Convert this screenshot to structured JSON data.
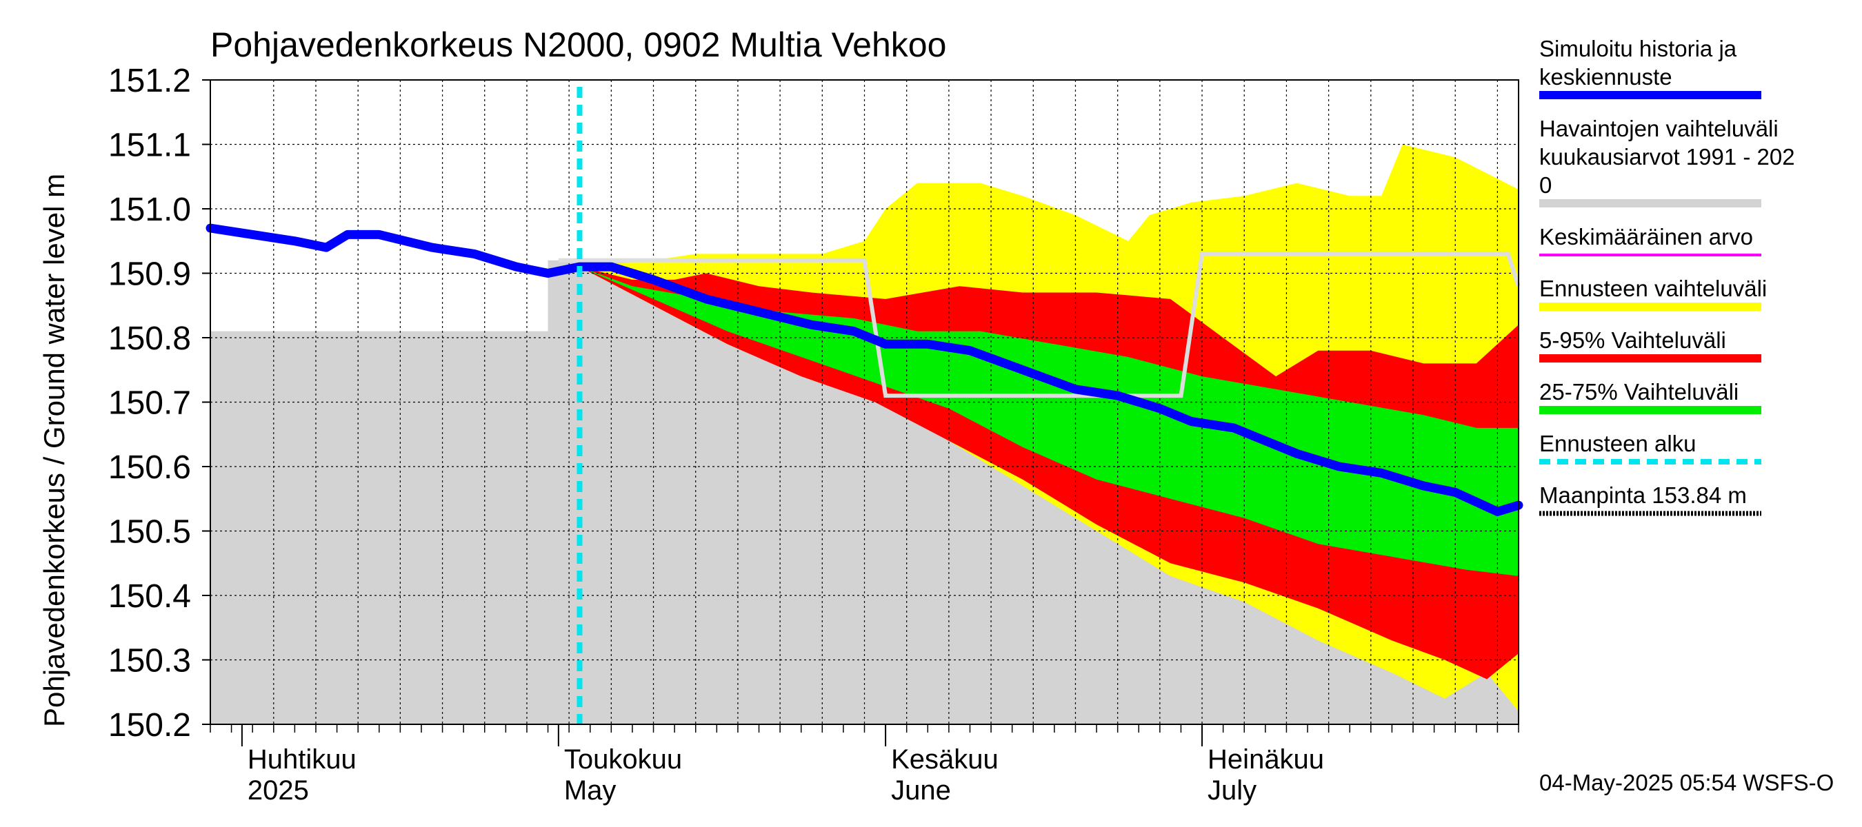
{
  "chart_data": {
    "type": "area",
    "title": "Pohjavedenkorkeus N2000, 0902 Multia Vehkoo",
    "ylabel": "Pohjavedenkorkeus / Ground water level   m",
    "ylim": [
      150.2,
      151.2
    ],
    "yticks": [
      "151.2",
      "151.1",
      "151.0",
      "150.9",
      "150.8",
      "150.7",
      "150.6",
      "150.5",
      "150.4",
      "150.3",
      "150.2"
    ],
    "xlim": [
      "2025-03-29",
      "2025-07-31"
    ],
    "grid": true,
    "month_labels": [
      {
        "date": "2025-04-01",
        "line1": "Huhtikuu",
        "line2": "2025"
      },
      {
        "date": "2025-05-01",
        "line1": "Toukokuu",
        "line2": "May"
      },
      {
        "date": "2025-06-01",
        "line1": "Kesäkuu",
        "line2": "June"
      },
      {
        "date": "2025-07-01",
        "line1": "Heinäkuu",
        "line2": "July"
      }
    ],
    "forecast_start": "2025-05-03",
    "footer": "04-May-2025 05:54 WSFS-O",
    "colors": {
      "observed_range": "#d3d3d3",
      "forecast_range": "#ffff00",
      "range_5_95": "#ff0000",
      "range_25_75": "#00ee00",
      "median": "#0000ff",
      "monthly_mean": "#dddddd",
      "forecast_start": "#00e5ee",
      "average": "#ff00ff"
    },
    "legend": [
      {
        "key": "median",
        "line1": "Simuloitu historia ja",
        "line2": "keskiennuste",
        "line3": "",
        "color": "#0000ff",
        "style": "solid"
      },
      {
        "key": "observed",
        "line1": "Havaintojen vaihteluväli",
        "line2": " kuukausiarvot 1991 - 202",
        "line3": "0",
        "color": "#d3d3d3",
        "style": "solid"
      },
      {
        "key": "average",
        "line1": "Keskimääräinen arvo",
        "line2": "",
        "line3": "",
        "color": "#ff00ff",
        "style": "thin"
      },
      {
        "key": "forecast_range",
        "line1": "Ennusteen vaihteluväli",
        "line2": "",
        "line3": "",
        "color": "#ffff00",
        "style": "solid"
      },
      {
        "key": "range_5_95",
        "line1": "5-95% Vaihteluväli",
        "line2": "",
        "line3": "",
        "color": "#ff0000",
        "style": "solid"
      },
      {
        "key": "range_25_75",
        "line1": "25-75% Vaihteluväli",
        "line2": "",
        "line3": "",
        "color": "#00ee00",
        "style": "solid"
      },
      {
        "key": "forecast_start",
        "line1": "Ennusteen alku",
        "line2": "",
        "line3": "",
        "color": "#00e5ee",
        "style": "dashed"
      },
      {
        "key": "ground",
        "line1": "Maanpinta 153.84 m",
        "line2": "",
        "line3": "",
        "color": "#000000",
        "style": "dotted"
      }
    ],
    "observed_range": {
      "upper": [
        [
          "2025-03-29",
          150.81
        ],
        [
          "2025-04-30",
          150.81
        ],
        [
          "2025-04-30",
          150.92
        ],
        [
          "2025-05-31",
          150.92
        ],
        [
          "2025-05-31",
          150.71
        ],
        [
          "2025-06-30",
          150.71
        ],
        [
          "2025-06-30",
          150.93
        ],
        [
          "2025-07-31",
          150.93
        ]
      ],
      "lower": [
        [
          "2025-03-29",
          150.2
        ],
        [
          "2025-07-31",
          150.2
        ]
      ]
    },
    "monthly_mean": [
      [
        "2025-05-01",
        150.92
      ],
      [
        "2025-05-30",
        150.92
      ],
      [
        "2025-06-01",
        150.71
      ],
      [
        "2025-06-29",
        150.71
      ],
      [
        "2025-07-01",
        150.93
      ],
      [
        "2025-07-30",
        150.93
      ],
      [
        "2025-07-31",
        150.88
      ]
    ],
    "forecast_range": {
      "upper": [
        [
          "2025-05-03",
          150.91
        ],
        [
          "2025-05-10",
          150.92
        ],
        [
          "2025-05-14",
          150.93
        ],
        [
          "2025-05-20",
          150.93
        ],
        [
          "2025-05-26",
          150.93
        ],
        [
          "2025-05-30",
          150.95
        ],
        [
          "2025-06-01",
          151.0
        ],
        [
          "2025-06-04",
          151.04
        ],
        [
          "2025-06-10",
          151.04
        ],
        [
          "2025-06-14",
          151.02
        ],
        [
          "2025-06-19",
          150.99
        ],
        [
          "2025-06-24",
          150.95
        ],
        [
          "2025-06-26",
          150.99
        ],
        [
          "2025-06-30",
          151.01
        ],
        [
          "2025-07-05",
          151.02
        ],
        [
          "2025-07-10",
          151.04
        ],
        [
          "2025-07-15",
          151.02
        ],
        [
          "2025-07-18",
          151.02
        ],
        [
          "2025-07-20",
          151.1
        ],
        [
          "2025-07-25",
          151.08
        ],
        [
          "2025-07-31",
          151.03
        ]
      ],
      "lower": [
        [
          "2025-05-03",
          150.91
        ],
        [
          "2025-05-10",
          150.85
        ],
        [
          "2025-05-17",
          150.79
        ],
        [
          "2025-05-24",
          150.75
        ],
        [
          "2025-05-31",
          150.71
        ],
        [
          "2025-06-07",
          150.64
        ],
        [
          "2025-06-14",
          150.57
        ],
        [
          "2025-06-21",
          150.5
        ],
        [
          "2025-06-28",
          150.43
        ],
        [
          "2025-07-05",
          150.39
        ],
        [
          "2025-07-12",
          150.33
        ],
        [
          "2025-07-19",
          150.28
        ],
        [
          "2025-07-24",
          150.24
        ],
        [
          "2025-07-28",
          150.28
        ],
        [
          "2025-07-31",
          150.22
        ]
      ]
    },
    "range_5_95": {
      "upper": [
        [
          "2025-05-03",
          150.91
        ],
        [
          "2025-05-08",
          150.89
        ],
        [
          "2025-05-12",
          150.89
        ],
        [
          "2025-05-15",
          150.9
        ],
        [
          "2025-05-20",
          150.88
        ],
        [
          "2025-05-25",
          150.87
        ],
        [
          "2025-06-01",
          150.86
        ],
        [
          "2025-06-08",
          150.88
        ],
        [
          "2025-06-14",
          150.87
        ],
        [
          "2025-06-21",
          150.87
        ],
        [
          "2025-06-28",
          150.86
        ],
        [
          "2025-07-03",
          150.8
        ],
        [
          "2025-07-08",
          150.74
        ],
        [
          "2025-07-12",
          150.78
        ],
        [
          "2025-07-17",
          150.78
        ],
        [
          "2025-07-22",
          150.76
        ],
        [
          "2025-07-27",
          150.76
        ],
        [
          "2025-07-31",
          150.82
        ]
      ],
      "lower": [
        [
          "2025-05-03",
          150.91
        ],
        [
          "2025-05-10",
          150.85
        ],
        [
          "2025-05-17",
          150.79
        ],
        [
          "2025-05-24",
          150.74
        ],
        [
          "2025-05-31",
          150.7
        ],
        [
          "2025-06-07",
          150.64
        ],
        [
          "2025-06-14",
          150.58
        ],
        [
          "2025-06-21",
          150.51
        ],
        [
          "2025-06-28",
          150.45
        ],
        [
          "2025-07-05",
          150.42
        ],
        [
          "2025-07-12",
          150.38
        ],
        [
          "2025-07-19",
          150.33
        ],
        [
          "2025-07-24",
          150.3
        ],
        [
          "2025-07-28",
          150.27
        ],
        [
          "2025-07-31",
          150.31
        ]
      ]
    },
    "range_25_75": {
      "upper": [
        [
          "2025-05-03",
          150.91
        ],
        [
          "2025-05-08",
          150.88
        ],
        [
          "2025-05-15",
          150.86
        ],
        [
          "2025-05-22",
          150.84
        ],
        [
          "2025-05-29",
          150.83
        ],
        [
          "2025-06-04",
          150.81
        ],
        [
          "2025-06-10",
          150.81
        ],
        [
          "2025-06-17",
          150.79
        ],
        [
          "2025-06-24",
          150.77
        ],
        [
          "2025-07-01",
          150.74
        ],
        [
          "2025-07-08",
          150.72
        ],
        [
          "2025-07-15",
          150.7
        ],
        [
          "2025-07-22",
          150.68
        ],
        [
          "2025-07-27",
          150.66
        ],
        [
          "2025-07-31",
          150.66
        ]
      ],
      "lower": [
        [
          "2025-05-03",
          150.91
        ],
        [
          "2025-05-10",
          150.86
        ],
        [
          "2025-05-17",
          150.81
        ],
        [
          "2025-05-24",
          150.77
        ],
        [
          "2025-05-31",
          150.73
        ],
        [
          "2025-06-07",
          150.69
        ],
        [
          "2025-06-14",
          150.63
        ],
        [
          "2025-06-21",
          150.58
        ],
        [
          "2025-06-28",
          150.55
        ],
        [
          "2025-07-05",
          150.52
        ],
        [
          "2025-07-12",
          150.48
        ],
        [
          "2025-07-19",
          150.46
        ],
        [
          "2025-07-26",
          150.44
        ],
        [
          "2025-07-31",
          150.43
        ]
      ]
    },
    "median": [
      [
        "2025-03-29",
        150.97
      ],
      [
        "2025-04-02",
        150.96
      ],
      [
        "2025-04-06",
        150.95
      ],
      [
        "2025-04-09",
        150.94
      ],
      [
        "2025-04-11",
        150.96
      ],
      [
        "2025-04-14",
        150.96
      ],
      [
        "2025-04-19",
        150.94
      ],
      [
        "2025-04-23",
        150.93
      ],
      [
        "2025-04-27",
        150.91
      ],
      [
        "2025-04-30",
        150.9
      ],
      [
        "2025-05-03",
        150.91
      ],
      [
        "2025-05-06",
        150.91
      ],
      [
        "2025-05-10",
        150.89
      ],
      [
        "2025-05-15",
        150.86
      ],
      [
        "2025-05-20",
        150.84
      ],
      [
        "2025-05-25",
        150.82
      ],
      [
        "2025-05-29",
        150.81
      ],
      [
        "2025-06-01",
        150.79
      ],
      [
        "2025-06-05",
        150.79
      ],
      [
        "2025-06-09",
        150.78
      ],
      [
        "2025-06-14",
        150.75
      ],
      [
        "2025-06-19",
        150.72
      ],
      [
        "2025-06-23",
        150.71
      ],
      [
        "2025-06-27",
        150.69
      ],
      [
        "2025-06-30",
        150.67
      ],
      [
        "2025-07-04",
        150.66
      ],
      [
        "2025-07-07",
        150.64
      ],
      [
        "2025-07-10",
        150.62
      ],
      [
        "2025-07-14",
        150.6
      ],
      [
        "2025-07-18",
        150.59
      ],
      [
        "2025-07-22",
        150.57
      ],
      [
        "2025-07-25",
        150.56
      ],
      [
        "2025-07-29",
        150.53
      ],
      [
        "2025-07-31",
        150.54
      ]
    ]
  }
}
